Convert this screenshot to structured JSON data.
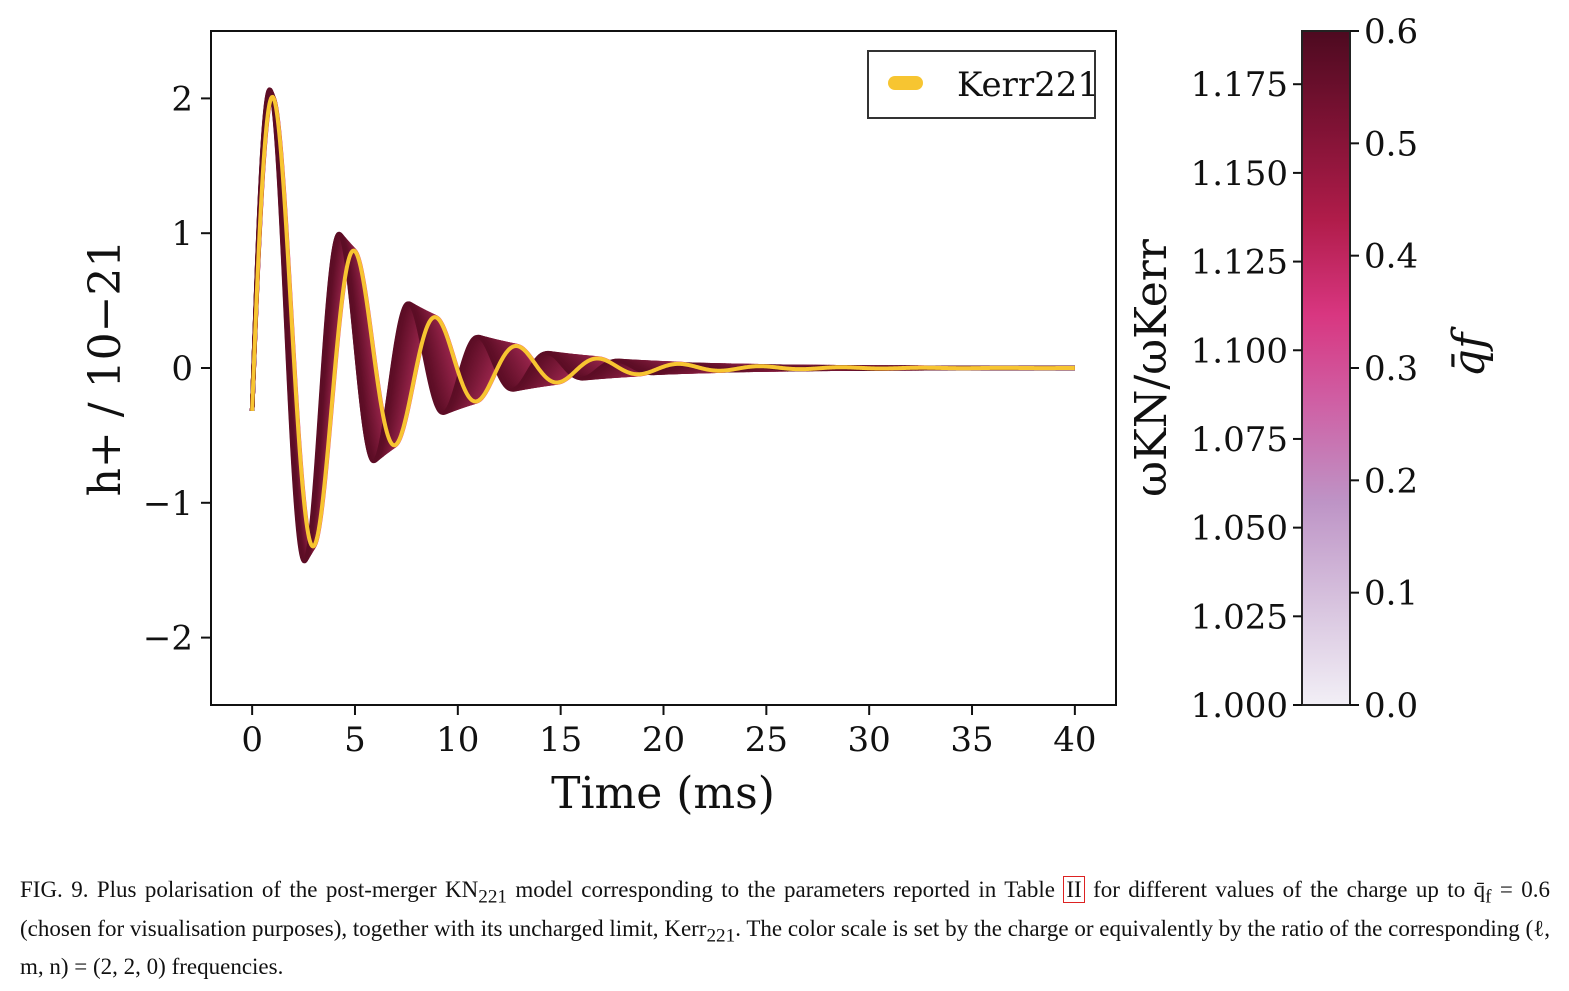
{
  "chart_data": {
    "type": "line",
    "xlabel": "Time (ms)",
    "ylabel": "h+ / 10−21",
    "xlim": [
      -2,
      42
    ],
    "ylim": [
      -2.5,
      2.5
    ],
    "x_ticks": [
      0,
      5,
      10,
      15,
      20,
      25,
      30,
      35,
      40
    ],
    "y_ticks": [
      -2,
      -1,
      0,
      1,
      2
    ],
    "x_tick_labels": [
      "0",
      "5",
      "10",
      "15",
      "20",
      "25",
      "30",
      "35",
      "40"
    ],
    "y_tick_labels": [
      "−2",
      "−1",
      "0",
      "1",
      "2"
    ],
    "legend": {
      "entries": [
        "Kerr221"
      ],
      "location": "upper right"
    },
    "series": [
      {
        "name": "Kerr221",
        "color": "#f7c531",
        "model": "damped sinusoid",
        "period_ms": 3.95,
        "damping_time_ms": 4.72,
        "amplitude": 2.5,
        "phase": -0.1277,
        "t_range": [
          0,
          40
        ]
      },
      {
        "name": "KN221 (charged family, q̄f up to 0.6)",
        "color_dark": "#5c0d25",
        "color_light": "#e8457e",
        "model": "damped sinusoid band",
        "period_ms_at_max_charge": 3.36,
        "damping_time_ms_at_max_charge": 4.62,
        "amplitude": 2.5,
        "phase": -0.1277,
        "t_range": [
          0,
          40
        ]
      }
    ],
    "colorbar": {
      "label": "q̄f",
      "min": 0.0,
      "max": 0.6,
      "ticks_right": [
        "0.0",
        "0.1",
        "0.2",
        "0.3",
        "0.4",
        "0.5",
        "0.6"
      ],
      "ticks_right_values": [
        0.0,
        0.1,
        0.2,
        0.3,
        0.4,
        0.5,
        0.6
      ],
      "left_label": "ωKN/ωKerr",
      "left_min": 1.0,
      "left_max": 1.19,
      "ticks_left": [
        "1.000",
        "1.025",
        "1.050",
        "1.075",
        "1.100",
        "1.125",
        "1.150",
        "1.175"
      ],
      "ticks_left_values": [
        1.0,
        1.025,
        1.05,
        1.075,
        1.1,
        1.125,
        1.15,
        1.175
      ],
      "colors": [
        "#f2eff6",
        "#d9c6e0",
        "#be94c6",
        "#cf5fa4",
        "#d83680",
        "#b01c4a",
        "#7e1234",
        "#4d0a20"
      ]
    }
  },
  "caption": {
    "part1": "FIG. 9. Plus polarisation of the post-merger KN",
    "sub1": "221",
    "part2": " model corresponding to the parameters reported in Table ",
    "table_ref": "II",
    "part3": " for different values of the charge up to q̄",
    "sub2": "f",
    "part4": " = 0.6 (chosen for visualisation purposes), together with its uncharged limit, Kerr",
    "sub3": "221",
    "part5": ". The color scale is set by the charge or equivalently by the ratio of the corresponding (ℓ, m, n) = (2, 2, 0) frequencies."
  }
}
